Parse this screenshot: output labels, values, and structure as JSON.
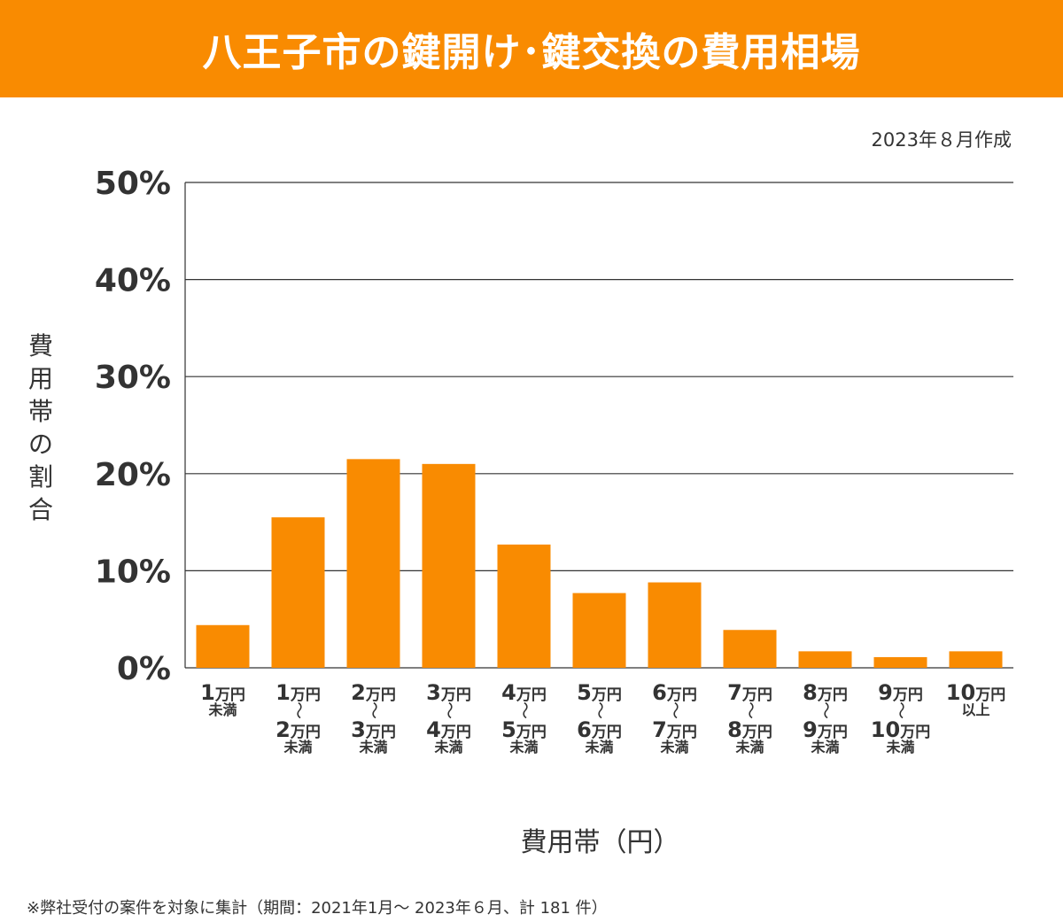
{
  "header": {
    "title": "八王子市の鍵開け･鍵交換の費用相場"
  },
  "created_note": "2023年８月作成",
  "axis": {
    "ylabel": "費用帯の割合",
    "xlabel": "費用帯（円）"
  },
  "footnote": "※弊社受付の案件を対象に集計（期間：2021年1月～ 2023年６月、計 181 件）",
  "colors": {
    "accent": "#f98b01",
    "bar": "#f98b01",
    "gridline": "#333333"
  },
  "chart_data": {
    "type": "bar",
    "title": "八王子市の鍵開け･鍵交換の費用相場",
    "xlabel": "費用帯（円）",
    "ylabel": "費用帯の割合",
    "ylim": [
      0,
      50
    ],
    "yticks": [
      "0%",
      "10%",
      "20%",
      "30%",
      "40%",
      "50%"
    ],
    "grid": true,
    "categories": [
      [
        "1万円",
        "未満"
      ],
      [
        "1万円",
        "～",
        "2万円",
        "未満"
      ],
      [
        "2万円",
        "～",
        "3万円",
        "未満"
      ],
      [
        "3万円",
        "～",
        "4万円",
        "未満"
      ],
      [
        "4万円",
        "～",
        "5万円",
        "未満"
      ],
      [
        "5万円",
        "～",
        "6万円",
        "未満"
      ],
      [
        "6万円",
        "～",
        "7万円",
        "未満"
      ],
      [
        "7万円",
        "～",
        "8万円",
        "未満"
      ],
      [
        "8万円",
        "～",
        "9万円",
        "未満"
      ],
      [
        "9万円",
        "～",
        "10万円",
        "未満"
      ],
      [
        "10万円",
        "以上"
      ]
    ],
    "values": [
      4.4,
      15.5,
      21.5,
      21.0,
      12.7,
      7.7,
      8.8,
      3.9,
      1.7,
      1.1,
      1.7
    ]
  }
}
